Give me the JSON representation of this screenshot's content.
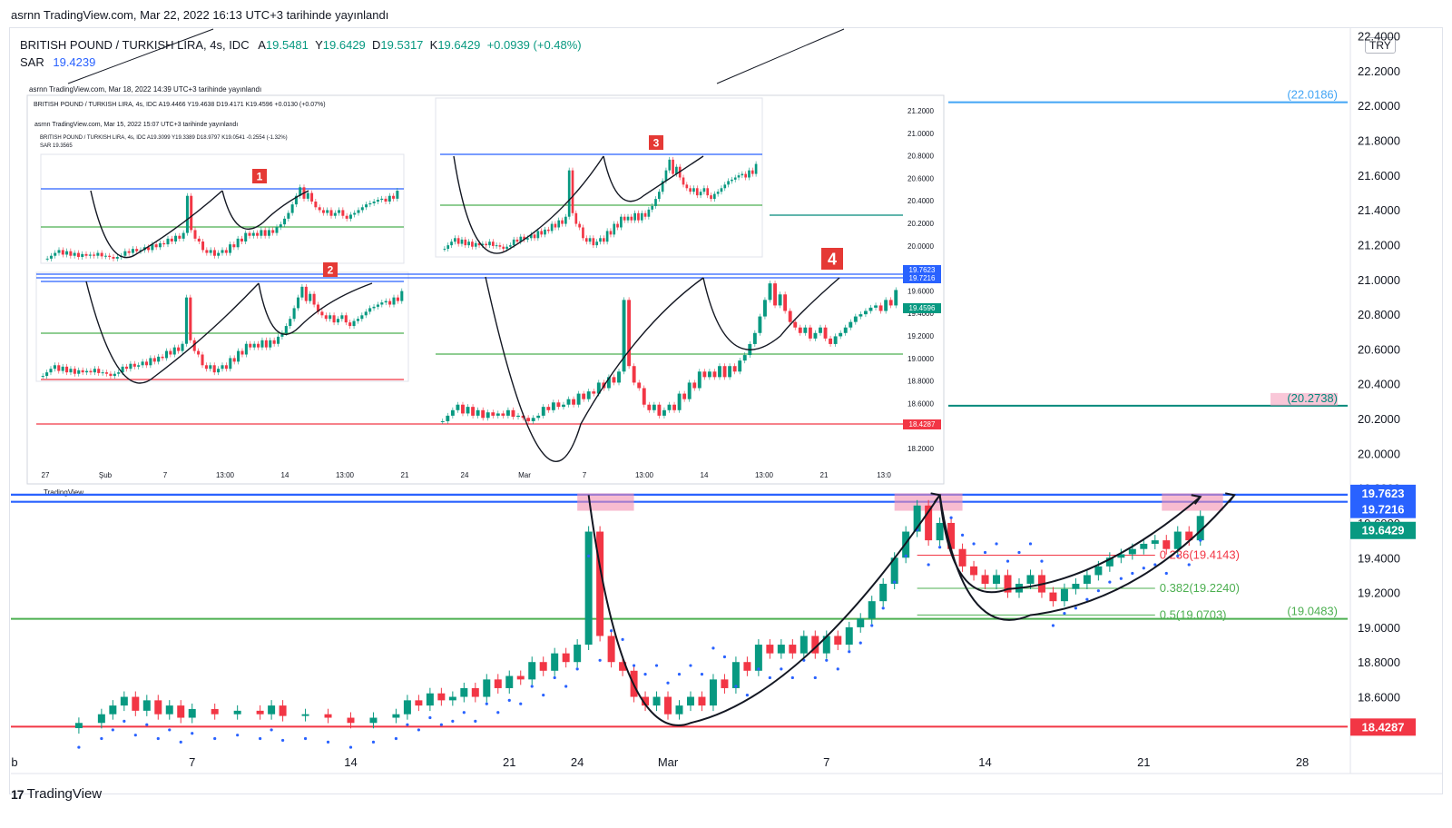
{
  "header": {
    "published": "asrnn TradingView.com, Mar 22, 2022 16:13 UTC+3 tarihinde yayınlandı"
  },
  "legend": {
    "symbol": "BRITISH POUND / TURKISH LIRA, 4s, IDC",
    "open_label": "A",
    "open": "19.5481",
    "high_label": "Y",
    "high": "19.6429",
    "low_label": "D",
    "low": "19.5317",
    "close_label": "K",
    "close": "19.6429",
    "change": "+0.0939 (+0.48%)",
    "sar_label": "SAR",
    "sar_value": "19.4239"
  },
  "currency": "TRY",
  "brand": "TradingView",
  "colors": {
    "up": "#089981",
    "down": "#f23645",
    "sar": "#2962ff",
    "resistance": "#2962ff",
    "support_green": "#4caf50",
    "fib_red": "#f23645",
    "base_red": "#f23645",
    "teal_line": "#00897b",
    "light_blue": "#42a5f5",
    "highlight": "#f48fb1"
  },
  "chart_data": {
    "type": "candlestick",
    "symbol": "GBP/TRY",
    "timeframe": "4s",
    "y_ticks": [
      "22.4000",
      "22.2000",
      "22.0000",
      "21.8000",
      "21.6000",
      "21.4000",
      "21.2000",
      "21.0000",
      "20.8000",
      "20.6000",
      "20.4000",
      "20.2000",
      "20.0000",
      "19.8000",
      "19.6000",
      "19.4000",
      "19.2000",
      "19.0000",
      "18.8000",
      "18.6000"
    ],
    "ylim": [
      18.3,
      22.45
    ],
    "x_ticks": [
      {
        "label": "b",
        "day": -1
      },
      {
        "label": "7",
        "day": 7
      },
      {
        "label": "14",
        "day": 14
      },
      {
        "label": "21",
        "day": 21
      },
      {
        "label": "24",
        "day": 24
      },
      {
        "label": "Mar",
        "day": 28
      },
      {
        "label": "7",
        "day": 35
      },
      {
        "label": "14",
        "day": 42
      },
      {
        "label": "21",
        "day": 49
      },
      {
        "label": "28",
        "day": 56
      }
    ],
    "x_range": [
      -1,
      58
    ],
    "levels": [
      {
        "value": 22.0186,
        "label": "(22.0186)",
        "color": "#42a5f5"
      },
      {
        "value": 20.2738,
        "label": "(20.2738)",
        "color": "#00897b"
      },
      {
        "value": 19.7623,
        "label": "19.7623",
        "color": "#2962ff"
      },
      {
        "value": 19.7216,
        "label": "19.7216",
        "color": "#2962ff"
      },
      {
        "value": 19.0483,
        "label": "(19.0483)",
        "color": "#4caf50"
      },
      {
        "value": 18.4287,
        "label": "18.4287",
        "color": "#f23645"
      }
    ],
    "fibonacci": [
      {
        "label": "0.236(19.4143)",
        "value": 19.4143,
        "color": "#f23645"
      },
      {
        "label": "0.382(19.2240)",
        "value": 19.224,
        "color": "#4caf50"
      },
      {
        "label": "0.5(19.0703)",
        "value": 19.0703,
        "color": "#4caf50"
      }
    ],
    "last_price": {
      "value": 19.6429,
      "label": "19.6429"
    },
    "inset_labels": [
      "1",
      "2",
      "3",
      "4"
    ],
    "inset_header": "asrnn TradingView.com, Mar 18, 2022 14:39 UTC+3 tarihinde yayınlandı",
    "inset_header_2": "asrnn TradingView.com, Mar 15, 2022 15:07 UTC+3 tarihinde yayınlandı",
    "inset_legend": "BRITISH POUND / TURKISH LIRA, 4s, IDC  A19.4466 Y19.4638 D19.4171 K19.4596 +0.0130 (+0.07%)",
    "inset_legend_2": "BRITISH POUND / TURKISH LIRA, 4s, IDC  A19.3099 Y19.3389 D18.9797 K19.0541 -0.2554 (-1.32%)",
    "inset_sar": "SAR  19.3565",
    "inset_last": "19.4596",
    "inset_x_ticks": [
      "27",
      "Şub",
      "7",
      "13:00",
      "14",
      "13:00",
      "21",
      "24",
      "Mar",
      "7",
      "13:00",
      "14",
      "13:00",
      "21",
      "13:0"
    ],
    "inset_y_ticks": [
      "21.2000",
      "21.0000",
      "20.8000",
      "20.6000",
      "20.4000",
      "20.2000",
      "20.0000",
      "19.8000",
      "19.6000",
      "19.4000",
      "19.2000",
      "19.0000",
      "18.8000",
      "18.6000",
      "18.4000",
      "18.2000"
    ],
    "inset_brand": "TradingView",
    "closes": [
      {
        "day": 2.0,
        "close": 18.45
      },
      {
        "day": 3.0,
        "close": 18.5
      },
      {
        "day": 3.5,
        "close": 18.55
      },
      {
        "day": 4.0,
        "close": 18.6
      },
      {
        "day": 4.5,
        "close": 18.52
      },
      {
        "day": 5.0,
        "close": 18.58
      },
      {
        "day": 5.5,
        "close": 18.5
      },
      {
        "day": 6.0,
        "close": 18.55
      },
      {
        "day": 6.5,
        "close": 18.48
      },
      {
        "day": 7.0,
        "close": 18.53
      },
      {
        "day": 8.0,
        "close": 18.5
      },
      {
        "day": 9.0,
        "close": 18.52
      },
      {
        "day": 10.0,
        "close": 18.5
      },
      {
        "day": 10.5,
        "close": 18.55
      },
      {
        "day": 11.0,
        "close": 18.49
      },
      {
        "day": 12.0,
        "close": 18.5
      },
      {
        "day": 13.0,
        "close": 18.48
      },
      {
        "day": 14.0,
        "close": 18.45
      },
      {
        "day": 15.0,
        "close": 18.48
      },
      {
        "day": 16.0,
        "close": 18.5
      },
      {
        "day": 16.5,
        "close": 18.58
      },
      {
        "day": 17.0,
        "close": 18.55
      },
      {
        "day": 17.5,
        "close": 18.62
      },
      {
        "day": 18.0,
        "close": 18.58
      },
      {
        "day": 18.5,
        "close": 18.6
      },
      {
        "day": 19.0,
        "close": 18.65
      },
      {
        "day": 19.5,
        "close": 18.6
      },
      {
        "day": 20.0,
        "close": 18.7
      },
      {
        "day": 20.5,
        "close": 18.65
      },
      {
        "day": 21.0,
        "close": 18.72
      },
      {
        "day": 21.5,
        "close": 18.7
      },
      {
        "day": 22.0,
        "close": 18.8
      },
      {
        "day": 22.5,
        "close": 18.75
      },
      {
        "day": 23.0,
        "close": 18.85
      },
      {
        "day": 23.5,
        "close": 18.8
      },
      {
        "day": 24.0,
        "close": 18.9
      },
      {
        "day": 24.5,
        "close": 19.55
      },
      {
        "day": 25.0,
        "close": 18.95
      },
      {
        "day": 25.5,
        "close": 18.8
      },
      {
        "day": 26.0,
        "close": 18.75
      },
      {
        "day": 26.5,
        "close": 18.6
      },
      {
        "day": 27.0,
        "close": 18.55
      },
      {
        "day": 27.5,
        "close": 18.6
      },
      {
        "day": 28.0,
        "close": 18.5
      },
      {
        "day": 28.5,
        "close": 18.55
      },
      {
        "day": 29.0,
        "close": 18.6
      },
      {
        "day": 29.5,
        "close": 18.55
      },
      {
        "day": 30.0,
        "close": 18.7
      },
      {
        "day": 30.5,
        "close": 18.65
      },
      {
        "day": 31.0,
        "close": 18.8
      },
      {
        "day": 31.5,
        "close": 18.75
      },
      {
        "day": 32.0,
        "close": 18.9
      },
      {
        "day": 32.5,
        "close": 18.85
      },
      {
        "day": 33.0,
        "close": 18.9
      },
      {
        "day": 33.5,
        "close": 18.85
      },
      {
        "day": 34.0,
        "close": 18.95
      },
      {
        "day": 34.5,
        "close": 18.85
      },
      {
        "day": 35.0,
        "close": 18.95
      },
      {
        "day": 35.5,
        "close": 18.9
      },
      {
        "day": 36.0,
        "close": 19.0
      },
      {
        "day": 36.5,
        "close": 19.05
      },
      {
        "day": 37.0,
        "close": 19.15
      },
      {
        "day": 37.5,
        "close": 19.25
      },
      {
        "day": 38.0,
        "close": 19.4
      },
      {
        "day": 38.5,
        "close": 19.55
      },
      {
        "day": 39.0,
        "close": 19.7
      },
      {
        "day": 39.5,
        "close": 19.5
      },
      {
        "day": 40.0,
        "close": 19.6
      },
      {
        "day": 40.5,
        "close": 19.45
      },
      {
        "day": 41.0,
        "close": 19.35
      },
      {
        "day": 41.5,
        "close": 19.3
      },
      {
        "day": 42.0,
        "close": 19.25
      },
      {
        "day": 42.5,
        "close": 19.3
      },
      {
        "day": 43.0,
        "close": 19.2
      },
      {
        "day": 43.5,
        "close": 19.25
      },
      {
        "day": 44.0,
        "close": 19.3
      },
      {
        "day": 44.5,
        "close": 19.2
      },
      {
        "day": 45.0,
        "close": 19.15
      },
      {
        "day": 45.5,
        "close": 19.22
      },
      {
        "day": 46.0,
        "close": 19.25
      },
      {
        "day": 46.5,
        "close": 19.3
      },
      {
        "day": 47.0,
        "close": 19.35
      },
      {
        "day": 47.5,
        "close": 19.4
      },
      {
        "day": 48.0,
        "close": 19.42
      },
      {
        "day": 48.5,
        "close": 19.45
      },
      {
        "day": 49.0,
        "close": 19.48
      },
      {
        "day": 49.5,
        "close": 19.5
      },
      {
        "day": 50.0,
        "close": 19.45
      },
      {
        "day": 50.5,
        "close": 19.55
      },
      {
        "day": 51.0,
        "close": 19.5
      },
      {
        "day": 51.5,
        "close": 19.64
      }
    ]
  }
}
